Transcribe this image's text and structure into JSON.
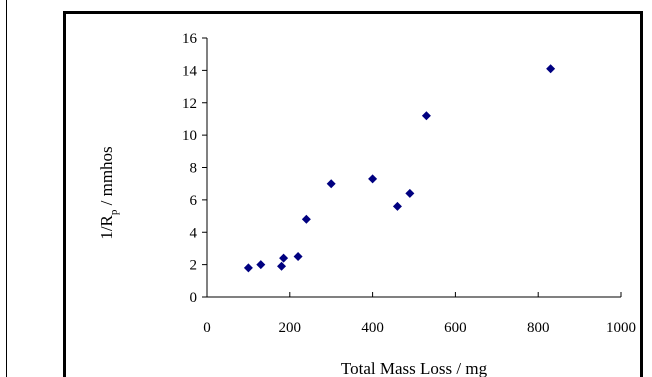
{
  "chart_data": {
    "type": "scatter",
    "title": "",
    "xlabel": "Total Mass Loss / mg",
    "ylabel": "1/R",
    "ylabel_subscript": "p",
    "ylabel_suffix": " / mmhos",
    "xlim": [
      0,
      1000
    ],
    "ylim": [
      0,
      16
    ],
    "x_ticks": [
      0,
      200,
      400,
      600,
      800,
      1000
    ],
    "y_ticks": [
      0,
      2,
      4,
      6,
      8,
      10,
      12,
      14,
      16
    ],
    "grid": false,
    "legend": "none",
    "marker": "diamond",
    "marker_color": "#000080",
    "points": [
      {
        "x": 100,
        "y": 1.8
      },
      {
        "x": 130,
        "y": 2.0
      },
      {
        "x": 180,
        "y": 1.9
      },
      {
        "x": 185,
        "y": 2.4
      },
      {
        "x": 220,
        "y": 2.5
      },
      {
        "x": 240,
        "y": 4.8
      },
      {
        "x": 300,
        "y": 7.0
      },
      {
        "x": 400,
        "y": 7.3
      },
      {
        "x": 460,
        "y": 5.6
      },
      {
        "x": 490,
        "y": 6.4
      },
      {
        "x": 530,
        "y": 11.2
      },
      {
        "x": 830,
        "y": 14.1
      }
    ]
  }
}
